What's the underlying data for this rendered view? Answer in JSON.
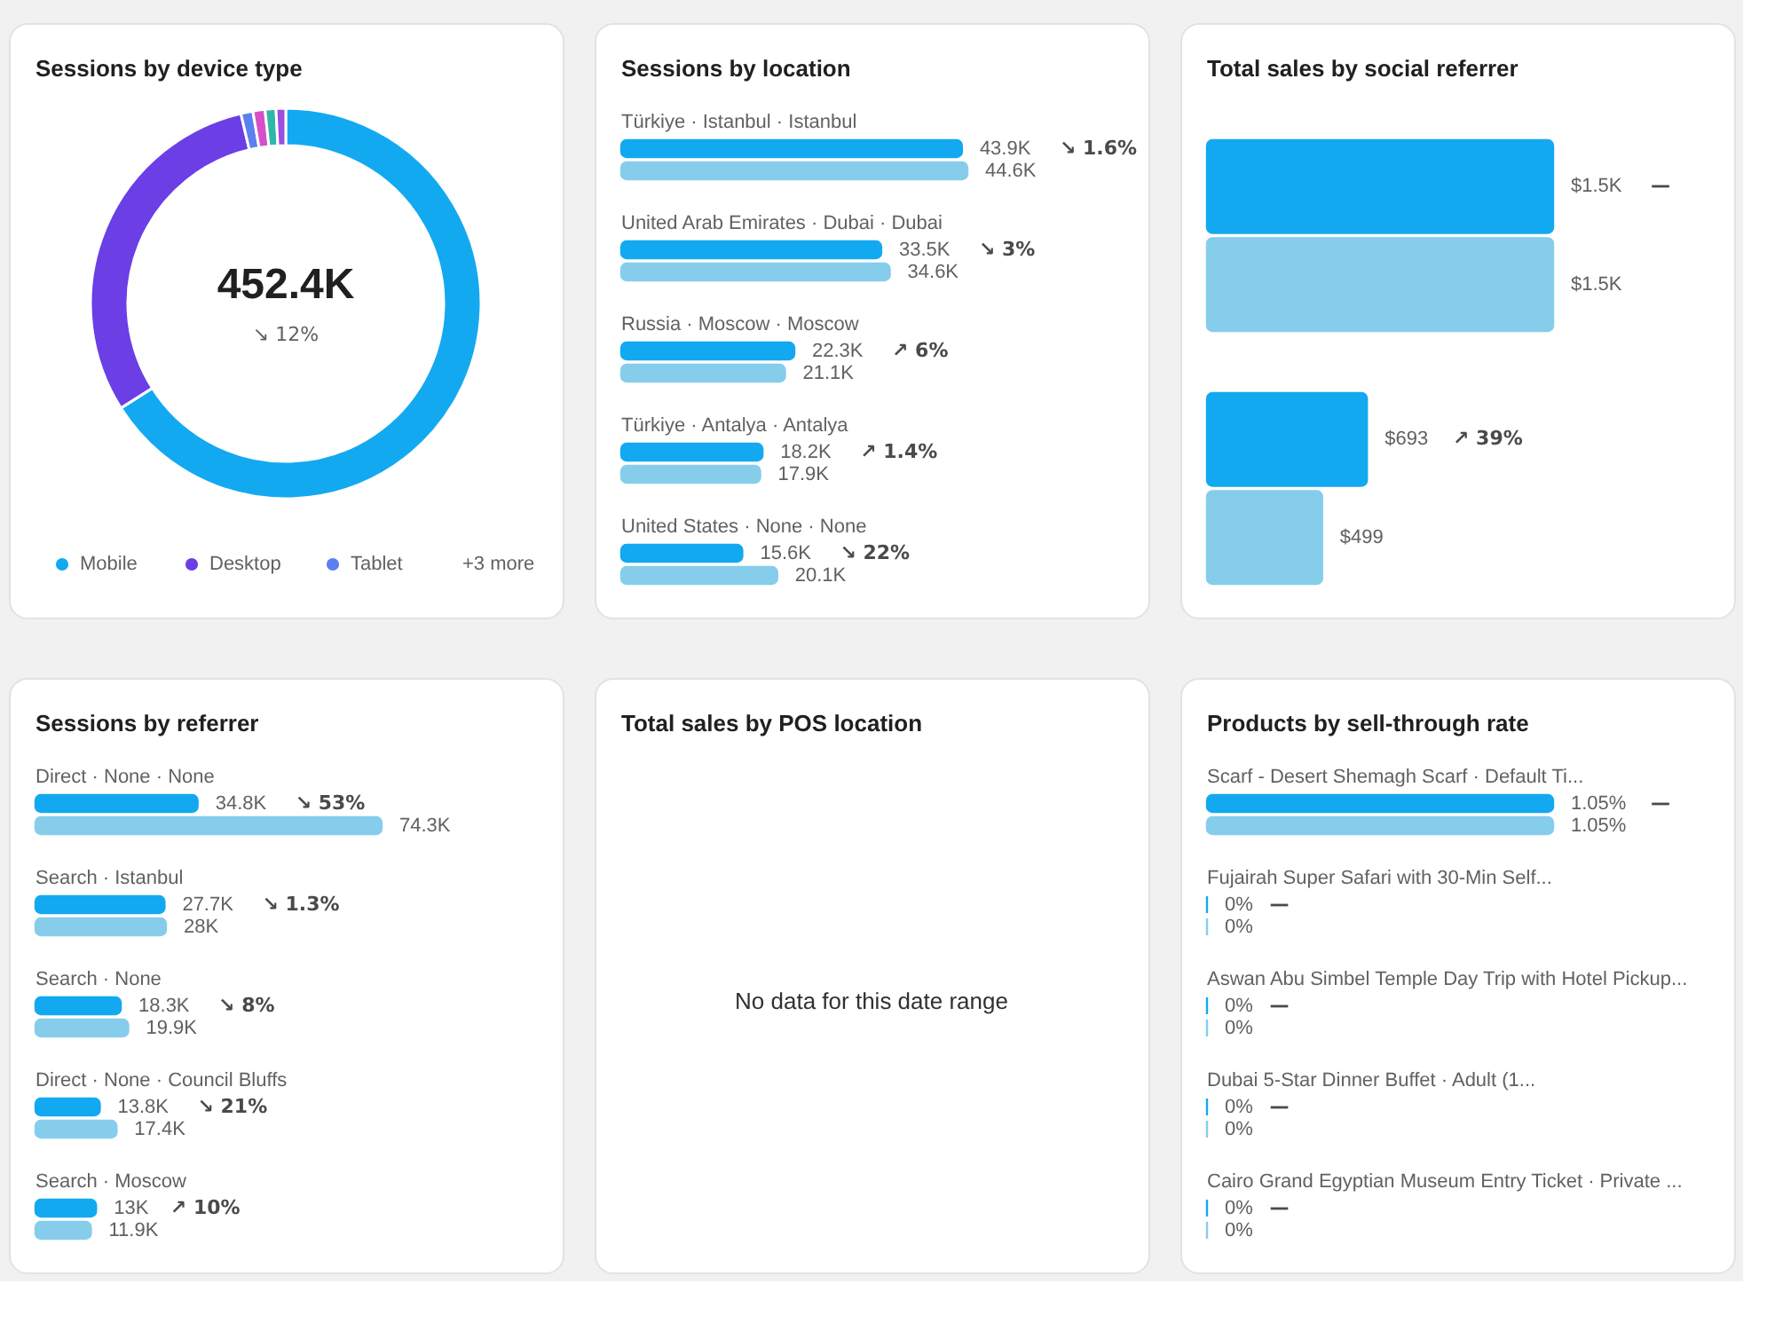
{
  "chart_data": [
    {
      "type": "donut",
      "title": "Sessions by device type",
      "categories": [
        "Mobile",
        "Desktop",
        "Tablet",
        null,
        null,
        null
      ],
      "values": [
        66,
        30.3,
        1,
        1,
        0.9,
        0.8
      ],
      "colors": [
        "#13a9f1",
        "#6b3ee6",
        "#5b80f0",
        "#d64fc8",
        "#2fb8a8",
        "#9b4fe0"
      ],
      "legend": "bottom",
      "annotations": [
        "452.4K",
        "↘ 12%",
        "+3 more"
      ]
    },
    {
      "type": "bar",
      "orientation": "horizontal",
      "title": "Sessions by location",
      "categories": [
        "Türkiye · Istanbul · Istanbul",
        "United Arab Emirates · Dubai · Dubai",
        "Russia · Moscow · Moscow",
        "Türkiye · Antalya · Antalya",
        "United States · None · None"
      ],
      "series": [
        {
          "color": "#13a9f1",
          "values": [
            43.9,
            33.5,
            22.3,
            18.2,
            15.6
          ],
          "value_labels": [
            "43.9K",
            "33.5K",
            "22.3K",
            "18.2K",
            "15.6K"
          ]
        },
        {
          "color": "#86cdec",
          "values": [
            44.6,
            34.6,
            21.1,
            17.9,
            20.1
          ],
          "value_labels": [
            "44.6K",
            "34.6K",
            "21.1K",
            "17.9K",
            "20.1K"
          ]
        }
      ],
      "annotations": [
        "↘ 1.6%",
        "↘ 3%",
        "↗ 6%",
        "↗ 1.4%",
        "↘ 22%"
      ]
    },
    {
      "type": "bar",
      "orientation": "horizontal",
      "title": "Total sales by social referrer",
      "categories": [
        null,
        null
      ],
      "series": [
        {
          "color": "#13a9f1",
          "values": [
            1500,
            693
          ],
          "value_labels": [
            "$1.5K",
            "$693"
          ]
        },
        {
          "color": "#86cdec",
          "values": [
            1500,
            499
          ],
          "value_labels": [
            "$1.5K",
            "$499"
          ]
        }
      ],
      "annotations": [
        "—",
        "↗ 39%"
      ]
    },
    {
      "type": "bar",
      "orientation": "horizontal",
      "title": "Sessions by referrer",
      "categories": [
        "Direct · None · None",
        "Search · Istanbul",
        "Search · None",
        "Direct · None · Council Bluffs",
        "Search · Moscow"
      ],
      "series": [
        {
          "color": "#13a9f1",
          "values": [
            34.8,
            27.7,
            18.3,
            13.8,
            13
          ],
          "value_labels": [
            "34.8K",
            "27.7K",
            "18.3K",
            "13.8K",
            "13K"
          ]
        },
        {
          "color": "#86cdec",
          "values": [
            74.3,
            28,
            19.9,
            17.4,
            11.9
          ],
          "value_labels": [
            "74.3K",
            "28K",
            "19.9K",
            "17.4K",
            "11.9K"
          ]
        }
      ],
      "annotations": [
        "↘ 53%",
        "↘ 1.3%",
        "↘ 8%",
        "↘ 21%",
        "↗ 10%"
      ]
    },
    {
      "type": "other",
      "title": "Total sales by POS location",
      "annotations": [
        "No data for this date range"
      ]
    },
    {
      "type": "bar",
      "orientation": "horizontal",
      "title": "Products by sell-through rate",
      "categories": [
        "Scarf - Desert Shemagh Scarf · Default Ti...",
        "Fujairah Super Safari with 30-Min Self...",
        "Aswan Abu Simbel Temple Day Trip with Hotel Pickup...",
        "Dubai 5-Star Dinner Buffet · Adult (1...",
        "Cairo Grand Egyptian Museum Entry Ticket · Private ..."
      ],
      "series": [
        {
          "color": "#13a9f1",
          "values": [
            1.05,
            0,
            0,
            0,
            0
          ],
          "value_labels": [
            "1.05%",
            "0%",
            "0%",
            "0%",
            "0%"
          ]
        },
        {
          "color": "#86cdec",
          "values": [
            1.05,
            0,
            0,
            0,
            0
          ],
          "value_labels": [
            "1.05%",
            "0%",
            "0%",
            "0%",
            "0%"
          ]
        }
      ],
      "annotations": [
        "—",
        "—",
        "—",
        "—",
        "—"
      ]
    }
  ]
}
